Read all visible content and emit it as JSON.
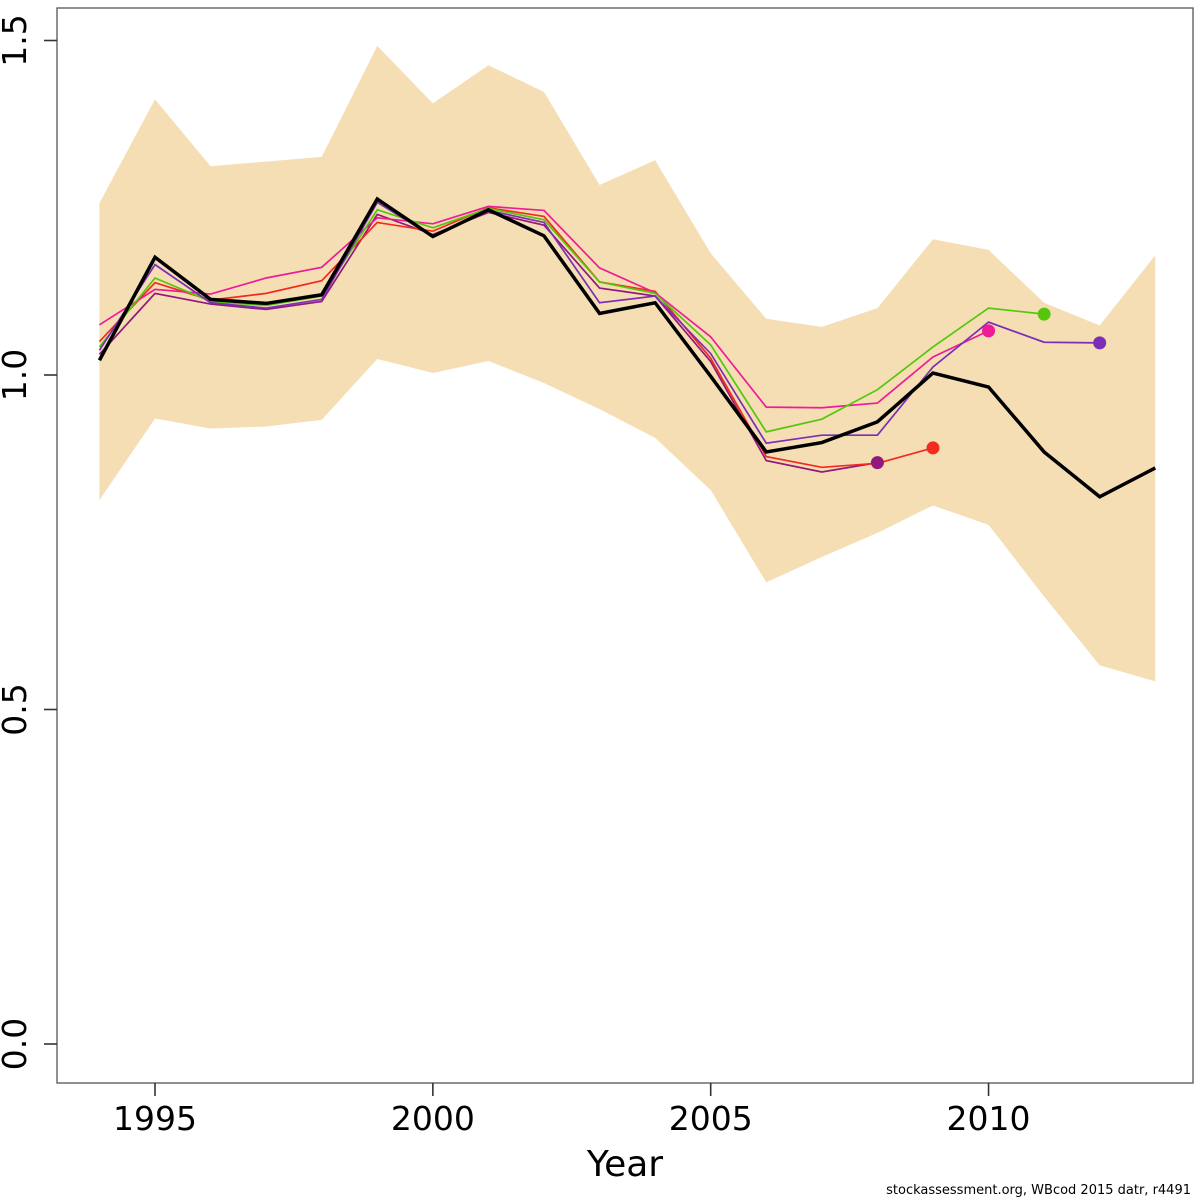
{
  "footer": "stockassessment.org, WBcod 2015 datr, r4491",
  "chart_data": {
    "type": "line",
    "title": "",
    "xlabel": "Year",
    "ylabel": "",
    "grid": false,
    "legend": "none",
    "x": [
      1994,
      1995,
      1996,
      1997,
      1998,
      1999,
      2000,
      2001,
      2002,
      2003,
      2004,
      2005,
      2006,
      2007,
      2008,
      2009,
      2010,
      2011,
      2012,
      2013
    ],
    "xlim": [
      1993.2,
      2013.7
    ],
    "ylim": [
      -0.06,
      1.55
    ],
    "xticks": [
      {
        "v": 1995,
        "label": "1995"
      },
      {
        "v": 2000,
        "label": "2000"
      },
      {
        "v": 2005,
        "label": "2005"
      },
      {
        "v": 2010,
        "label": "2010"
      }
    ],
    "yticks": [
      {
        "v": 0,
        "label": "0.0"
      },
      {
        "v": 0.5,
        "label": "0.5"
      },
      {
        "v": 1,
        "label": "1.0"
      },
      {
        "v": 1.5,
        "label": "1.5"
      }
    ],
    "band": {
      "name": "confidence-interval",
      "color": "#F5DEB3",
      "upper": [
        1.257,
        1.412,
        1.312,
        1.319,
        1.326,
        1.492,
        1.406,
        1.463,
        1.423,
        1.284,
        1.321,
        1.182,
        1.084,
        1.072,
        1.1,
        1.203,
        1.187,
        1.108,
        1.074,
        1.179
      ],
      "lower": [
        0.813,
        0.935,
        0.92,
        0.923,
        0.933,
        1.024,
        1.003,
        1.021,
        0.988,
        0.949,
        0.906,
        0.828,
        0.69,
        0.728,
        0.764,
        0.805,
        0.776,
        0.669,
        0.566,
        0.542
      ]
    },
    "series": [
      {
        "name": "base-run-2013",
        "color": "#000000",
        "width": 3.5,
        "end_dot": false,
        "start_year": 1994,
        "end_year": 2013,
        "values": [
          1.022,
          1.176,
          1.113,
          1.107,
          1.12,
          1.263,
          1.207,
          1.247,
          1.208,
          1.092,
          1.108,
          0.998,
          0.885,
          0.899,
          0.93,
          1.003,
          0.982,
          0.885,
          0.818,
          0.861
        ]
      },
      {
        "name": "retro-2012",
        "color": "#7B2FB5",
        "width": 1.7,
        "end_dot": true,
        "start_year": 1994,
        "end_year": 2012,
        "values": [
          1.037,
          1.165,
          1.108,
          1.1,
          1.113,
          1.258,
          1.207,
          1.246,
          1.228,
          1.108,
          1.118,
          1.032,
          0.898,
          0.91,
          0.91,
          1.012,
          1.079,
          1.049,
          1.048
        ]
      },
      {
        "name": "retro-2011",
        "color": "#55C60D",
        "width": 1.7,
        "end_dot": true,
        "start_year": 1994,
        "end_year": 2011,
        "values": [
          1.042,
          1.145,
          1.11,
          1.104,
          1.118,
          1.247,
          1.22,
          1.249,
          1.232,
          1.139,
          1.122,
          1.045,
          0.915,
          0.934,
          0.978,
          1.042,
          1.1,
          1.091
        ]
      },
      {
        "name": "retro-2010",
        "color": "#EE1C96",
        "width": 1.7,
        "end_dot": true,
        "start_year": 1994,
        "end_year": 2010,
        "values": [
          1.075,
          1.128,
          1.121,
          1.145,
          1.161,
          1.235,
          1.226,
          1.252,
          1.246,
          1.16,
          1.123,
          1.057,
          0.952,
          0.951,
          0.958,
          1.027,
          1.066
        ]
      },
      {
        "name": "retro-2009",
        "color": "#F32B1E",
        "width": 1.7,
        "end_dot": true,
        "start_year": 1994,
        "end_year": 2009,
        "values": [
          1.05,
          1.138,
          1.112,
          1.122,
          1.141,
          1.228,
          1.215,
          1.25,
          1.237,
          1.139,
          1.125,
          1.025,
          0.878,
          0.862,
          0.868,
          0.891
        ]
      },
      {
        "name": "retro-2008",
        "color": "#93187E",
        "width": 1.7,
        "end_dot": true,
        "start_year": 1994,
        "end_year": 2008,
        "values": [
          1.031,
          1.122,
          1.106,
          1.098,
          1.11,
          1.24,
          1.21,
          1.243,
          1.224,
          1.13,
          1.118,
          1.02,
          0.872,
          0.855,
          0.869
        ]
      }
    ]
  }
}
